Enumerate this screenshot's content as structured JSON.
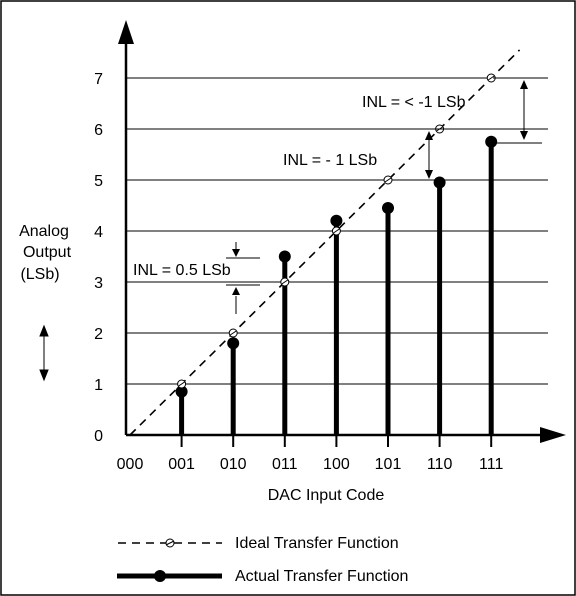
{
  "chart_data": {
    "type": "line",
    "title": "",
    "xlabel": "DAC Input Code",
    "ylabel": [
      "Analog",
      "Output",
      "(LSb)"
    ],
    "categories": [
      "000",
      "001",
      "010",
      "011",
      "100",
      "101",
      "110",
      "111"
    ],
    "yticks": [
      "0",
      "1",
      "2",
      "3",
      "4",
      "5",
      "6",
      "7"
    ],
    "ylim": [
      0,
      7
    ],
    "grid": true,
    "series": [
      {
        "name": "Ideal Transfer Function",
        "style": "dashed line with open circles",
        "values": [
          0,
          1,
          2,
          3,
          4,
          5,
          6,
          7
        ]
      },
      {
        "name": "Actual Transfer Function",
        "style": "thick stems with filled dots",
        "values": [
          0,
          0.85,
          1.8,
          3.5,
          4.2,
          4.45,
          4.95,
          5.75
        ]
      }
    ],
    "annotations": [
      {
        "text": "INL = 0.5 LSb",
        "at_code": "011"
      },
      {
        "text": "INL = - 1 LSb",
        "at_code": "110"
      },
      {
        "text": "INL = < -1 LSb",
        "at_code": "111"
      }
    ],
    "legend": {
      "placement": "bottom",
      "entries": [
        "Ideal Transfer Function",
        "Actual Transfer Function"
      ]
    }
  },
  "colors": {
    "ink": "#000000",
    "background": "#ffffff"
  }
}
